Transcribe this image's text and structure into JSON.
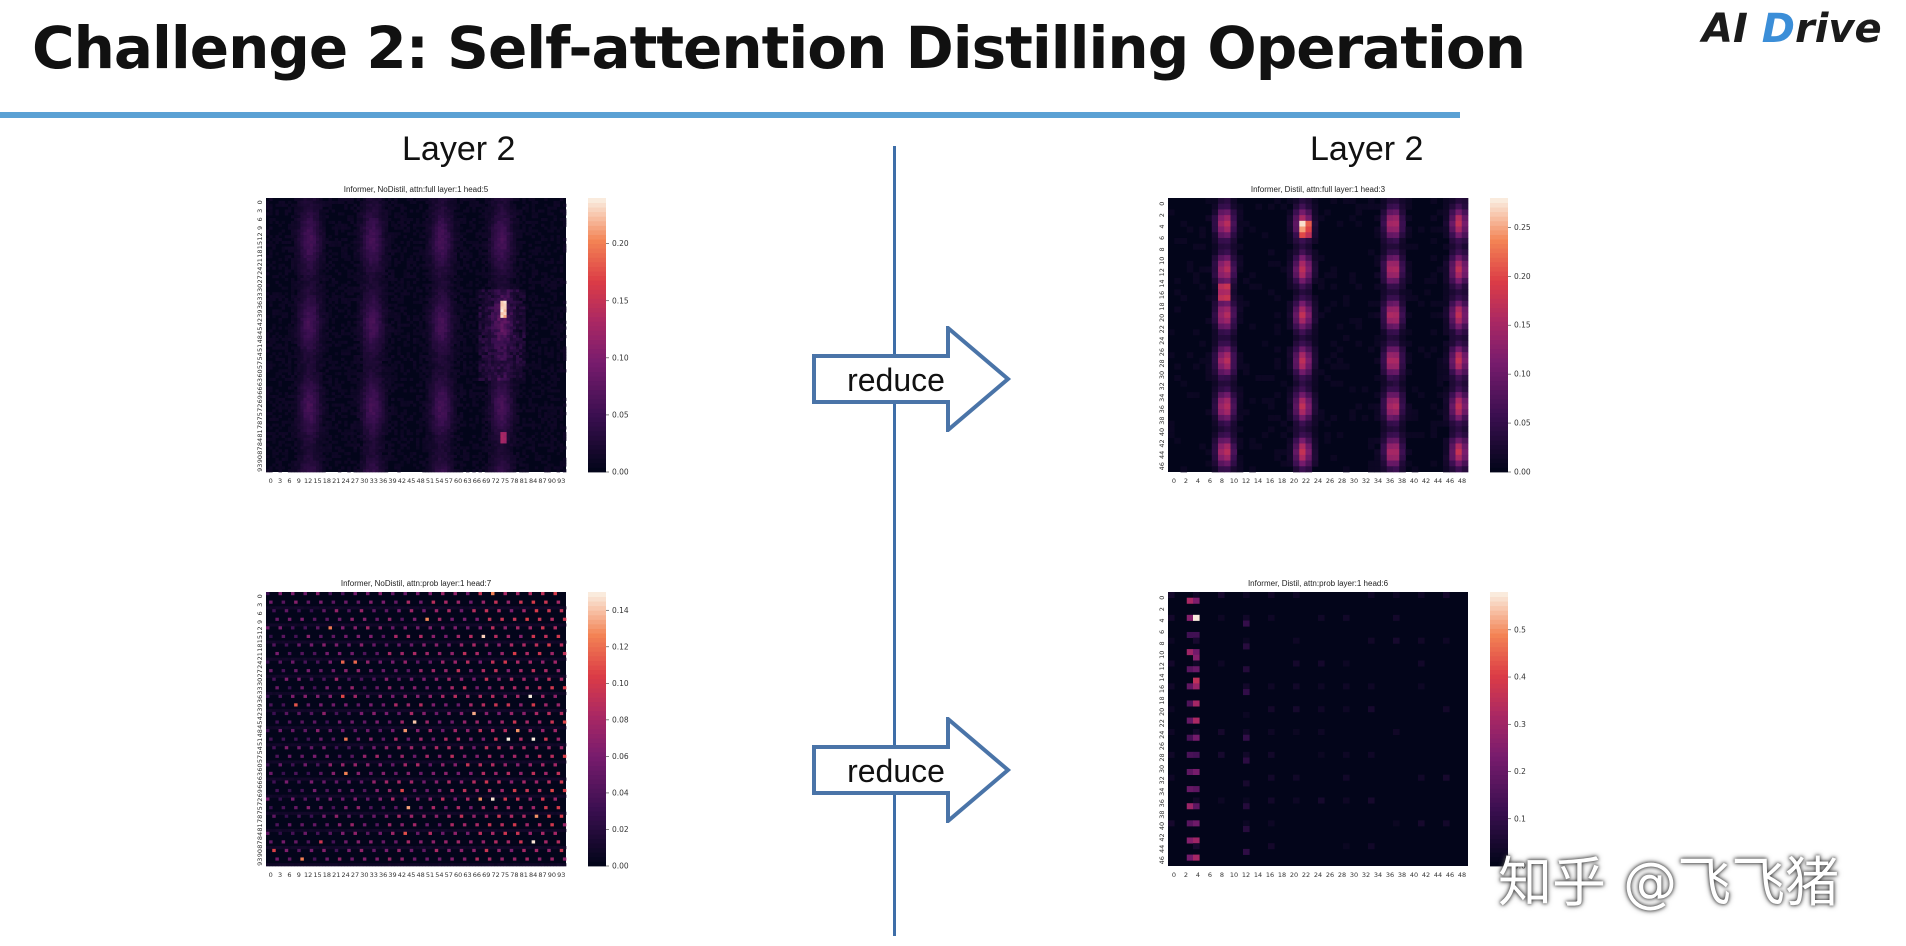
{
  "slide": {
    "title": "Challenge 2: Self-attention Distilling Operation",
    "logo": {
      "prefix": "AI ",
      "accent": "D",
      "suffix": "rive"
    },
    "label_left": "Layer 2",
    "label_right": "Layer 2",
    "arrow_top": "reduce",
    "arrow_bottom": "reduce",
    "watermark": "知乎 @飞飞猪"
  },
  "colors": {
    "rule": "#5aa1d4",
    "divider": "#3e6ea8",
    "arrow_stroke": "#4a74a8",
    "logo_accent": "#3b8ed8"
  },
  "chart_data": [
    {
      "type": "heatmap",
      "title": "Informer, NoDistil, attn:full layer:1 head:5",
      "rows": 96,
      "cols": 96,
      "x_ticks": [
        "0",
        "3",
        "6",
        "9",
        "12",
        "15",
        "18",
        "21",
        "24",
        "27",
        "30",
        "33",
        "36",
        "39",
        "42",
        "45",
        "48",
        "51",
        "54",
        "57",
        "60",
        "63",
        "66",
        "69",
        "72",
        "75",
        "78",
        "81",
        "84",
        "87",
        "90",
        "93"
      ],
      "y_ticks": [
        "0",
        "3",
        "6",
        "9",
        "12",
        "15",
        "18",
        "21",
        "24",
        "27",
        "30",
        "33",
        "36",
        "39",
        "42",
        "45",
        "48",
        "51",
        "54",
        "57",
        "60",
        "63",
        "66",
        "69",
        "72",
        "75",
        "78",
        "81",
        "84",
        "87",
        "90",
        "93"
      ],
      "colorbar_ticks": [
        "0.00",
        "0.05",
        "0.10",
        "0.15",
        "0.20"
      ],
      "vmax": 0.24
    },
    {
      "type": "heatmap",
      "title": "Informer, Distil, attn:full layer:1 head:3",
      "rows": 48,
      "cols": 48,
      "x_ticks": [
        "0",
        "2",
        "4",
        "6",
        "8",
        "10",
        "12",
        "14",
        "16",
        "18",
        "20",
        "22",
        "24",
        "26",
        "28",
        "30",
        "32",
        "34",
        "36",
        "38",
        "40",
        "42",
        "44",
        "46",
        "48"
      ],
      "y_ticks": [
        "0",
        "2",
        "4",
        "6",
        "8",
        "10",
        "12",
        "14",
        "16",
        "18",
        "20",
        "22",
        "24",
        "26",
        "28",
        "30",
        "32",
        "34",
        "36",
        "38",
        "40",
        "42",
        "44",
        "46"
      ],
      "colorbar_ticks": [
        "0.00",
        "0.05",
        "0.10",
        "0.15",
        "0.20",
        "0.25"
      ],
      "vmax": 0.28
    },
    {
      "type": "heatmap",
      "title": "Informer, NoDistil, attn:prob layer:1 head:7",
      "rows": 96,
      "cols": 96,
      "x_ticks": [
        "0",
        "3",
        "6",
        "9",
        "12",
        "15",
        "18",
        "21",
        "24",
        "27",
        "30",
        "33",
        "36",
        "39",
        "42",
        "45",
        "48",
        "51",
        "54",
        "57",
        "60",
        "63",
        "66",
        "69",
        "72",
        "75",
        "78",
        "81",
        "84",
        "87",
        "90",
        "93"
      ],
      "y_ticks": [
        "0",
        "3",
        "6",
        "9",
        "12",
        "15",
        "18",
        "21",
        "24",
        "27",
        "30",
        "33",
        "36",
        "39",
        "42",
        "45",
        "48",
        "51",
        "54",
        "57",
        "60",
        "63",
        "66",
        "69",
        "72",
        "75",
        "78",
        "81",
        "84",
        "87",
        "90",
        "93"
      ],
      "colorbar_ticks": [
        "0.00",
        "0.02",
        "0.04",
        "0.06",
        "0.08",
        "0.10",
        "0.12",
        "0.14"
      ],
      "vmax": 0.15
    },
    {
      "type": "heatmap",
      "title": "Informer, Distil, attn:prob layer:1 head:6",
      "rows": 48,
      "cols": 48,
      "x_ticks": [
        "0",
        "2",
        "4",
        "6",
        "8",
        "10",
        "12",
        "14",
        "16",
        "18",
        "20",
        "22",
        "24",
        "26",
        "28",
        "30",
        "32",
        "34",
        "36",
        "38",
        "40",
        "42",
        "44",
        "46",
        "48"
      ],
      "y_ticks": [
        "0",
        "2",
        "4",
        "6",
        "8",
        "10",
        "12",
        "14",
        "16",
        "18",
        "20",
        "22",
        "24",
        "26",
        "28",
        "30",
        "32",
        "34",
        "36",
        "38",
        "40",
        "42",
        "44",
        "46"
      ],
      "colorbar_ticks": [
        "0.0",
        "0.1",
        "0.2",
        "0.3",
        "0.4",
        "0.5"
      ],
      "vmax": 0.58
    }
  ]
}
